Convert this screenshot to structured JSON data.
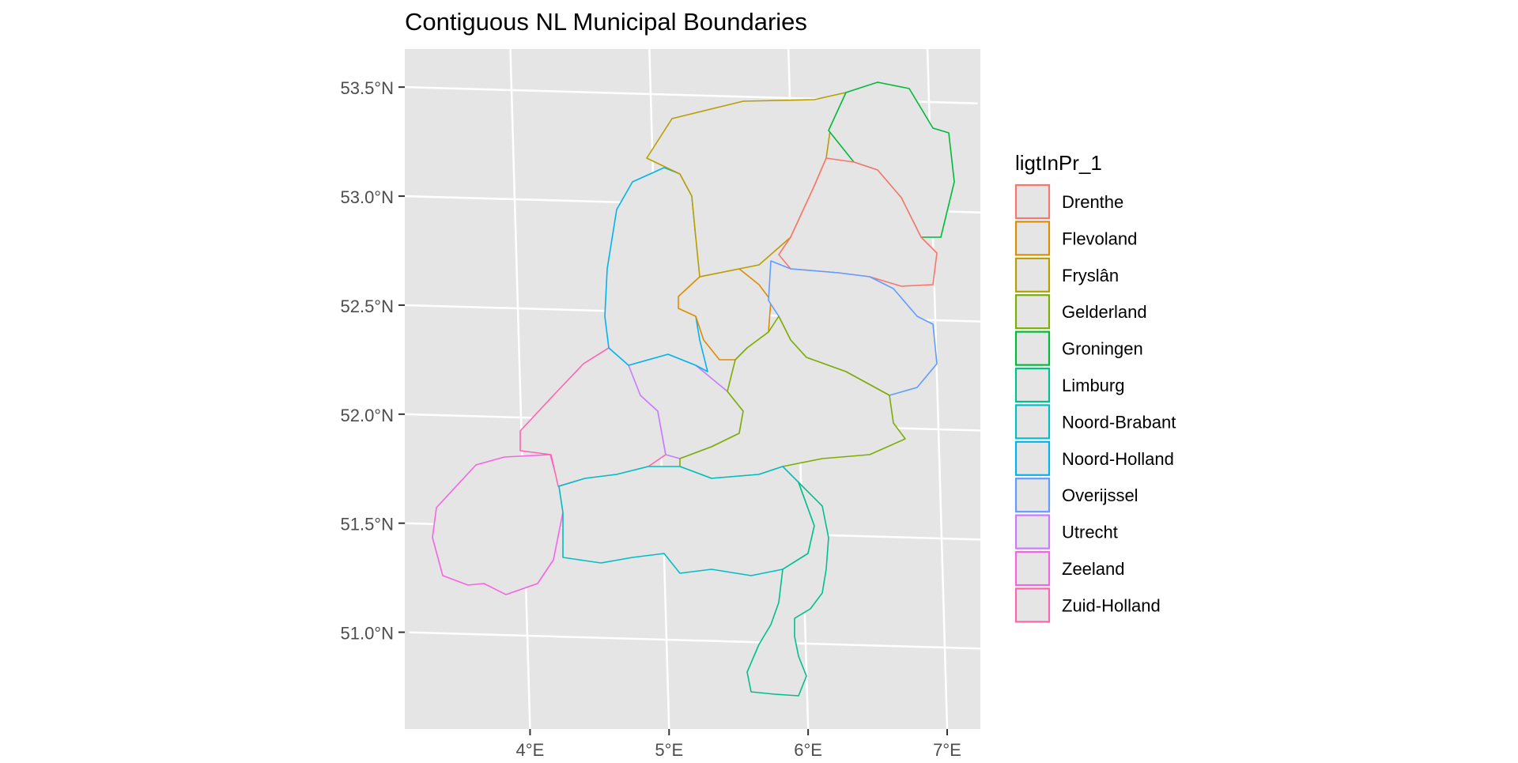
{
  "map": {
    "title": "Contiguous NL Municipal Boundaries",
    "y_axis": {
      "ticks": [
        {
          "lat": 53.5,
          "label": "53.5°N"
        },
        {
          "lat": 53.0,
          "label": "53.0°N"
        },
        {
          "lat": 52.5,
          "label": "52.5°N"
        },
        {
          "lat": 52.0,
          "label": "52.0°N"
        },
        {
          "lat": 51.5,
          "label": "51.5°N"
        },
        {
          "lat": 51.0,
          "label": "51.0°N"
        }
      ]
    },
    "x_axis": {
      "ticks": [
        {
          "lon": 4,
          "label": "4°E"
        },
        {
          "lon": 5,
          "label": "5°E"
        },
        {
          "lon": 6,
          "label": "6°E"
        },
        {
          "lon": 7,
          "label": "7°E"
        }
      ]
    },
    "panel_background": "#e5e5e5",
    "gridline_color": "#ffffff",
    "polygon_fill": "#e5e5e5",
    "legend": {
      "title": "ligtInPr_1",
      "placement": "right",
      "items": [
        {
          "label": "Drenthe",
          "color": "#F8766D"
        },
        {
          "label": "Flevoland",
          "color": "#DE8C00"
        },
        {
          "label": "Fryslân",
          "color": "#B79F00"
        },
        {
          "label": "Gelderland",
          "color": "#7CAE00"
        },
        {
          "label": "Groningen",
          "color": "#00BA38"
        },
        {
          "label": "Limburg",
          "color": "#00C08B"
        },
        {
          "label": "Noord-Brabant",
          "color": "#00BFC4"
        },
        {
          "label": "Noord-Holland",
          "color": "#00B4F0"
        },
        {
          "label": "Overijssel",
          "color": "#619CFF"
        },
        {
          "label": "Utrecht",
          "color": "#C77CFF"
        },
        {
          "label": "Zeeland",
          "color": "#F564E3"
        },
        {
          "label": "Zuid-Holland",
          "color": "#FF64B0"
        }
      ]
    }
  }
}
